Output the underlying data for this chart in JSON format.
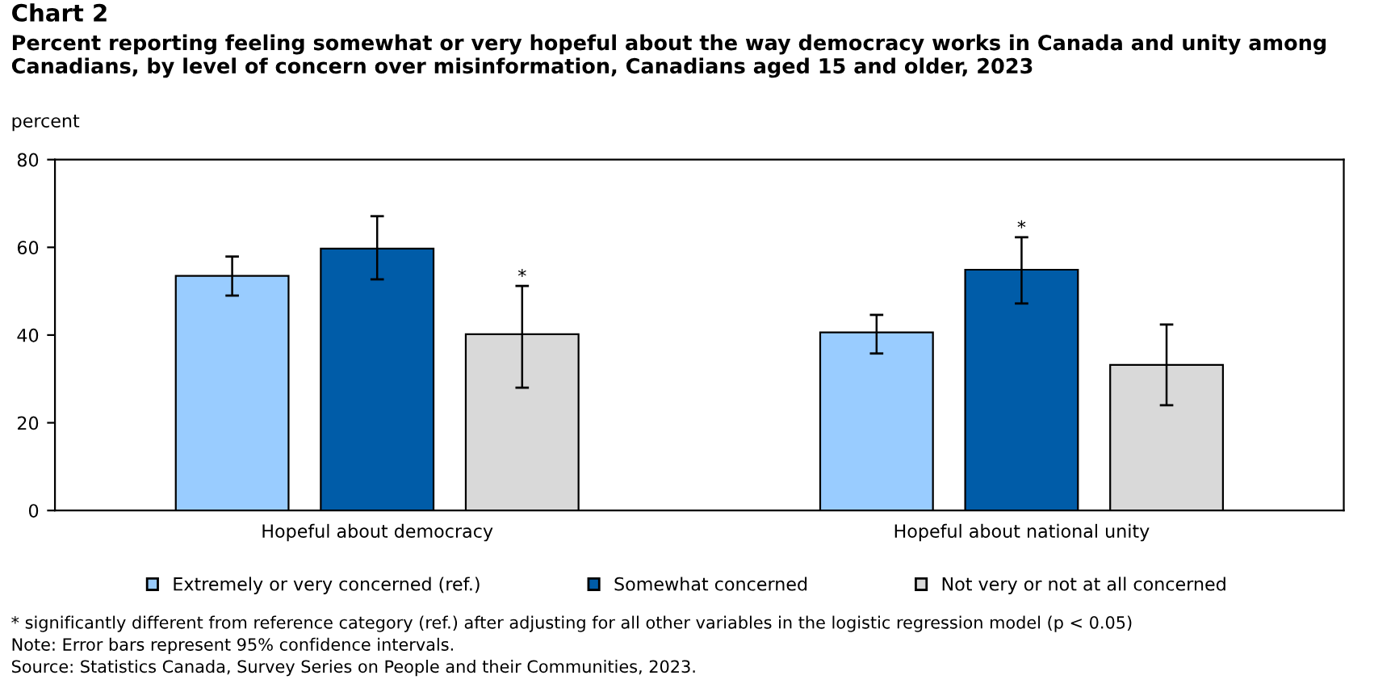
{
  "chart_data": {
    "type": "bar",
    "title": "Chart 2",
    "subtitle": "Percent reporting feeling somewhat or very hopeful about the way democracy works in Canada and unity among Canadians, by level of concern over misinformation, Canadians aged 15 and older, 2023",
    "ylabel": "percent",
    "categories": [
      "Hopeful about democracy",
      "Hopeful about national unity"
    ],
    "series": [
      {
        "name": "Extremely or very concerned (ref.)",
        "color": "#99ccff",
        "values": [
          53.5,
          40.6
        ],
        "errors": [
          [
            49.0,
            57.9
          ],
          [
            35.8,
            44.6
          ]
        ]
      },
      {
        "name": "Somewhat concerned",
        "color": "#005ca8",
        "values": [
          59.7,
          54.9
        ],
        "errors": [
          [
            52.7,
            67.1
          ],
          [
            47.2,
            62.3
          ]
        ]
      },
      {
        "name": "Not very or not at all concerned",
        "color": "#d9d9d9",
        "values": [
          40.2,
          33.2
        ],
        "errors": [
          [
            28.0,
            51.2
          ],
          [
            24.0,
            42.4
          ]
        ]
      }
    ],
    "ylim": [
      0,
      80
    ],
    "yticks": [
      0,
      20,
      40,
      60,
      80
    ],
    "grid": false,
    "legend": "bottom",
    "annotations": [
      {
        "text": "*",
        "y": 51.2
      },
      {
        "text": "*",
        "x": "Hopeful about national unity",
        "y": 62.3
      },
      "* significantly different from reference category (ref.) after adjusting for all other variables in the logistic regression model (p < 0.05)",
      "Note: Error bars represent 95% confidence intervals.",
      "Source: Statistics Canada, Survey Series on People and their Communities, 2023."
    ]
  }
}
